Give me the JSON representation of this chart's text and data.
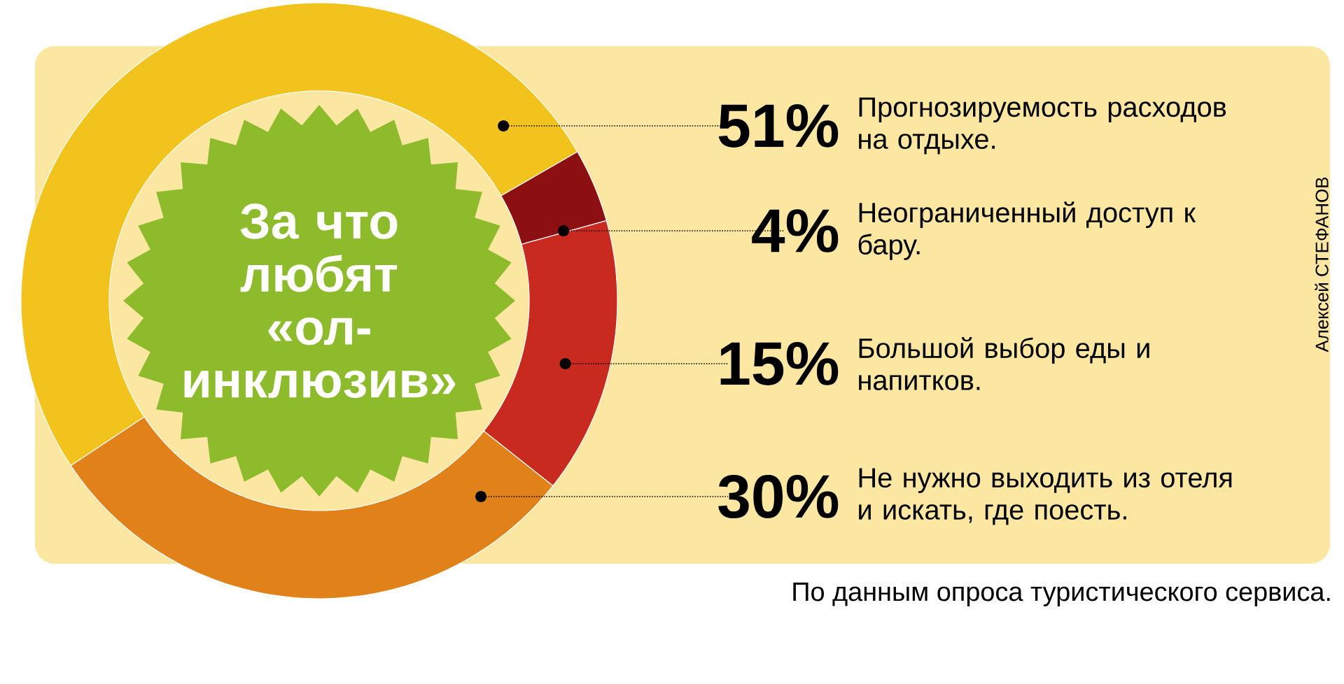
{
  "chart_data": {
    "type": "donut",
    "title": "За что любят «ол-инклюзив»",
    "categories": [
      "Прогнозируемость расходов на отдыхе.",
      "Неограниченный доступ к бару.",
      "Большой выбор еды и напитков.",
      "Не нужно выходить из отеля и искать, где поесть."
    ],
    "values": [
      51,
      4,
      15,
      30
    ],
    "value_labels": [
      "51%",
      "4%",
      "15%",
      "30%"
    ],
    "colors": [
      "#f2c31c",
      "#8c0f12",
      "#c92a1f",
      "#e0811a"
    ],
    "annotations": [
      "Алексей СТЕФАНОВ",
      "По данным опроса туристического сервиса."
    ]
  }
}
